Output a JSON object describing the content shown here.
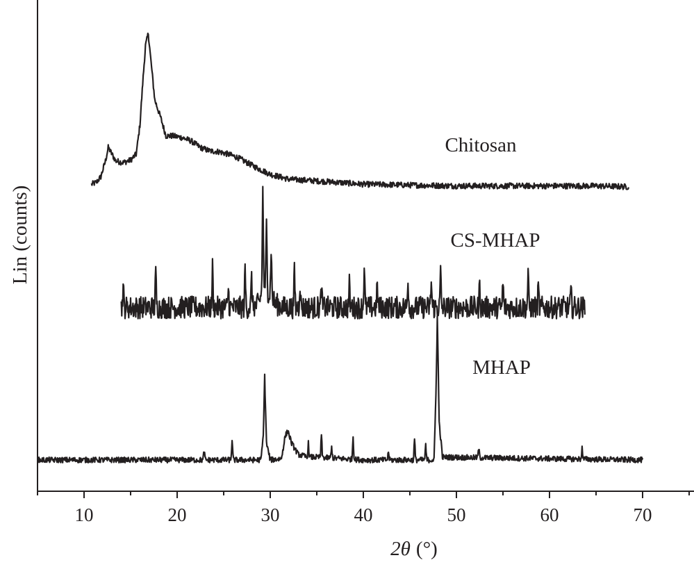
{
  "chart_data": {
    "type": "line",
    "xlabel_main": "2θ",
    "xlabel_unit": "(°)",
    "ylabel": "Lin (counts)",
    "xlim": [
      5,
      75
    ],
    "xticks": [
      10,
      20,
      30,
      40,
      50,
      60,
      70
    ],
    "y_ticks_shown": false,
    "colors": {
      "trace": "#231f20",
      "axis": "#231f20",
      "background": "#ffffff"
    },
    "series": [
      {
        "name": "Chitosan",
        "x_range": [
          10.8,
          68.5
        ],
        "noise": 3.5,
        "points": [
          [
            10.8,
            4
          ],
          [
            11.3,
            6
          ],
          [
            11.8,
            13
          ],
          [
            12.3,
            32
          ],
          [
            12.6,
            48
          ],
          [
            12.9,
            42
          ],
          [
            13.4,
            32
          ],
          [
            14.2,
            30
          ],
          [
            15.0,
            33
          ],
          [
            15.6,
            40
          ],
          [
            16.0,
            75
          ],
          [
            16.3,
            125
          ],
          [
            16.6,
            170
          ],
          [
            16.9,
            185
          ],
          [
            17.2,
            150
          ],
          [
            17.6,
            105
          ],
          [
            18.2,
            85
          ],
          [
            18.8,
            62
          ],
          [
            19.5,
            62
          ],
          [
            20.5,
            60
          ],
          [
            21.5,
            56
          ],
          [
            22.5,
            48
          ],
          [
            23.5,
            44
          ],
          [
            24.5,
            43
          ],
          [
            25.5,
            40
          ],
          [
            26.5,
            36
          ],
          [
            27.5,
            30
          ],
          [
            28.5,
            24
          ],
          [
            30,
            16
          ],
          [
            32,
            10
          ],
          [
            35,
            8
          ],
          [
            40,
            4
          ],
          [
            45,
            3
          ],
          [
            50,
            2
          ],
          [
            55,
            2
          ],
          [
            60,
            2
          ],
          [
            65,
            2
          ],
          [
            68.5,
            1
          ]
        ]
      },
      {
        "name": "CS-MHAP",
        "x_range": [
          14.0,
          63.8
        ],
        "noise": 13,
        "points": [
          [
            14.0,
            10
          ],
          [
            28.0,
            10
          ],
          [
            28.8,
            14
          ],
          [
            29.3,
            40
          ],
          [
            29.6,
            32
          ],
          [
            30.0,
            24
          ],
          [
            30.6,
            14
          ],
          [
            31.5,
            10
          ],
          [
            63.8,
            10
          ]
        ],
        "spikes": [
          [
            14.2,
            24
          ],
          [
            17.7,
            40
          ],
          [
            23.8,
            46
          ],
          [
            25.5,
            22
          ],
          [
            27.3,
            44
          ],
          [
            28.0,
            34
          ],
          [
            29.2,
            110
          ],
          [
            29.6,
            72
          ],
          [
            30.1,
            58
          ],
          [
            32.6,
            42
          ],
          [
            33.2,
            30
          ],
          [
            35.5,
            24
          ],
          [
            38.5,
            26
          ],
          [
            40.1,
            48
          ],
          [
            41.5,
            26
          ],
          [
            44.8,
            36
          ],
          [
            47.3,
            30
          ],
          [
            48.3,
            40
          ],
          [
            52.5,
            28
          ],
          [
            55.0,
            30
          ],
          [
            57.7,
            38
          ],
          [
            58.8,
            22
          ],
          [
            62.3,
            18
          ]
        ]
      },
      {
        "name": "MHAP",
        "x_range": [
          5.0,
          70.0
        ],
        "noise": 4,
        "points": [
          [
            5.0,
            6
          ],
          [
            25.0,
            6
          ],
          [
            29.0,
            6
          ],
          [
            29.25,
            40
          ],
          [
            29.4,
            126
          ],
          [
            29.6,
            30
          ],
          [
            30.0,
            6
          ],
          [
            31.2,
            8
          ],
          [
            31.6,
            40
          ],
          [
            31.9,
            48
          ],
          [
            32.3,
            30
          ],
          [
            33.0,
            14
          ],
          [
            34.0,
            10
          ],
          [
            35.0,
            10
          ],
          [
            40.0,
            6
          ],
          [
            47.6,
            6
          ],
          [
            47.8,
            100
          ],
          [
            47.95,
            212
          ],
          [
            48.15,
            60
          ],
          [
            48.5,
            10
          ],
          [
            70.0,
            6
          ]
        ],
        "spikes": [
          [
            22.9,
            14
          ],
          [
            25.9,
            30
          ],
          [
            34.1,
            20
          ],
          [
            35.5,
            32
          ],
          [
            36.6,
            16
          ],
          [
            38.9,
            34
          ],
          [
            42.7,
            12
          ],
          [
            45.5,
            30
          ],
          [
            46.7,
            20
          ],
          [
            52.4,
            14
          ],
          [
            63.5,
            16
          ]
        ]
      }
    ]
  }
}
